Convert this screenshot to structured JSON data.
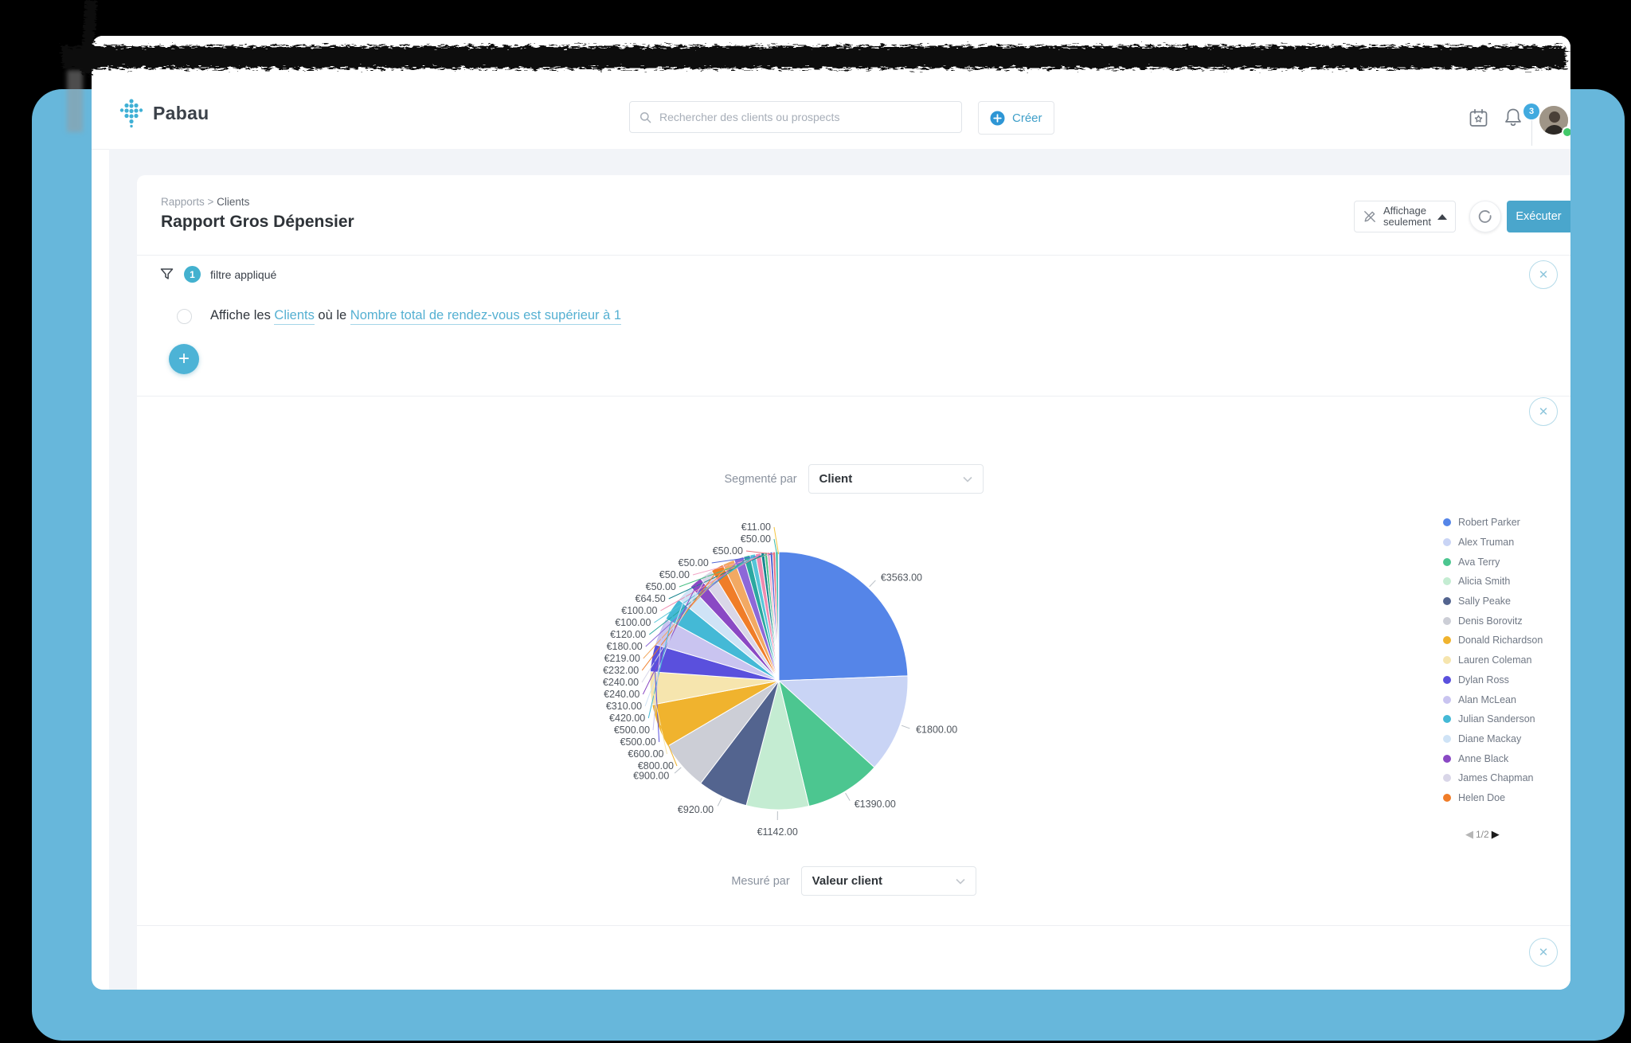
{
  "app": {
    "logo_text": "Pabau",
    "search_placeholder": "Rechercher des clients ou prospects",
    "create_button": "Créer",
    "notification_count": "3"
  },
  "report_header": {
    "breadcrumb_1": "Rapports",
    "breadcrumb_sep": " > ",
    "breadcrumb_2": "Clients",
    "title": "Rapport Gros Dépensier",
    "display_only_line1": "Affichage",
    "display_only_line2": "seulement",
    "execute_button": "Exécuter"
  },
  "filter_bar": {
    "count_badge": "1",
    "applied_text": "filtre appliqué",
    "sentence_prefix": "Affiche les ",
    "entity_link": "Clients",
    "sentence_middle": " où le ",
    "condition_link": "Nombre total de rendez-vous est supérieur à 1"
  },
  "chart_controls": {
    "segmented_label": "Segmenté par",
    "segmented_value": "Client",
    "measured_label": "Mesuré par",
    "measured_value": "Valeur client"
  },
  "legend": {
    "pagination": "1/2",
    "prev_arrow": "◀",
    "next_arrow": "▶"
  },
  "colors": {
    "accent_teal": "#49afd0",
    "execute_button_bg": "#4aa6cc",
    "create_icon_blue": "#2e96d5",
    "badge_blue": "#41aadf",
    "backdrop_blue": "#67b7db"
  },
  "chart_data": {
    "type": "pie",
    "currency": "€",
    "segmented_by": "Client",
    "measured_by": "Valeur client",
    "legend_position": "right",
    "slices": [
      {
        "client": "Robert Parker",
        "value": 3563,
        "label": "€3563.00",
        "color": "#5585e8"
      },
      {
        "client": "Alex Truman",
        "value": 1800,
        "label": "€1800.00",
        "color": "#c9d4f5"
      },
      {
        "client": "Ava Terry",
        "value": 1390,
        "label": "€1390.00",
        "color": "#4cc690"
      },
      {
        "client": "Alicia Smith",
        "value": 1142,
        "label": "€1142.00",
        "color": "#c4ecd2"
      },
      {
        "client": "Sally Peake",
        "value": 920,
        "label": "€920.00",
        "color": "#53648f"
      },
      {
        "client": "Denis Borovitz",
        "value": 900,
        "label": "€900.00",
        "color": "#ccced6"
      },
      {
        "client": "Donald Richardson",
        "value": 800,
        "label": "€800.00",
        "color": "#f0b32e"
      },
      {
        "client": "Lauren Coleman",
        "value": 600,
        "label": "€600.00",
        "color": "#f6e5ae"
      },
      {
        "client": "Dylan Ross",
        "value": 500,
        "label": "€500.00",
        "color": "#5a50dd"
      },
      {
        "client": "Alan McLean",
        "value": 500,
        "label": "€500.00",
        "color": "#c9c4f0"
      },
      {
        "client": "Julian Sanderson",
        "value": 420,
        "label": "€420.00",
        "color": "#44b9d6"
      },
      {
        "client": "Diane Mackay",
        "value": 310,
        "label": "€310.00",
        "color": "#cfe3f6"
      },
      {
        "client": "Anne Black",
        "value": 240,
        "label": "€240.00",
        "color": "#8a49c4"
      },
      {
        "client": "James Chapman",
        "value": 240,
        "label": "€240.00",
        "color": "#d9d6e8"
      },
      {
        "client": "Helen Doe",
        "value": 232,
        "label": "€232.00",
        "color": "#f07d28"
      },
      {
        "client": "",
        "value": 219,
        "label": "€219.00",
        "color": "#f2a963"
      },
      {
        "client": "",
        "value": 180,
        "label": "€180.00",
        "color": "#8d68d8"
      },
      {
        "client": "",
        "value": 120,
        "label": "€120.00",
        "color": "#2ba8a0"
      },
      {
        "client": "",
        "value": 100,
        "label": "€100.00",
        "color": "#56c5d8"
      },
      {
        "client": "",
        "value": 100,
        "label": "€100.00",
        "color": "#ef8bb0"
      },
      {
        "client": "",
        "value": 64.5,
        "label": "€64.50",
        "color": "#17858f"
      },
      {
        "client": "",
        "value": 50,
        "label": "€50.00",
        "color": "#48bf84"
      },
      {
        "client": "",
        "value": 50,
        "label": "€50.00",
        "color": "#f2a6c6"
      },
      {
        "client": "",
        "value": 50,
        "label": "€50.00",
        "color": "#5468d4"
      },
      {
        "client": "",
        "value": 50,
        "label": "€50.00",
        "color": "#e8707e"
      },
      {
        "client": "",
        "value": 50,
        "label": "€50.00",
        "color": "#37b7a5"
      },
      {
        "client": "",
        "value": 11,
        "label": "€11.00",
        "color": "#f3c53f"
      }
    ],
    "legend_page1_items": [
      "Robert Parker",
      "Alex Truman",
      "Ava Terry",
      "Alicia Smith",
      "Sally Peake",
      "Denis Borovitz",
      "Donald Richardson",
      "Lauren Coleman",
      "Dylan Ross",
      "Alan McLean",
      "Julian Sanderson",
      "Diane Mackay",
      "Anne Black",
      "James Chapman",
      "Helen Doe"
    ]
  }
}
